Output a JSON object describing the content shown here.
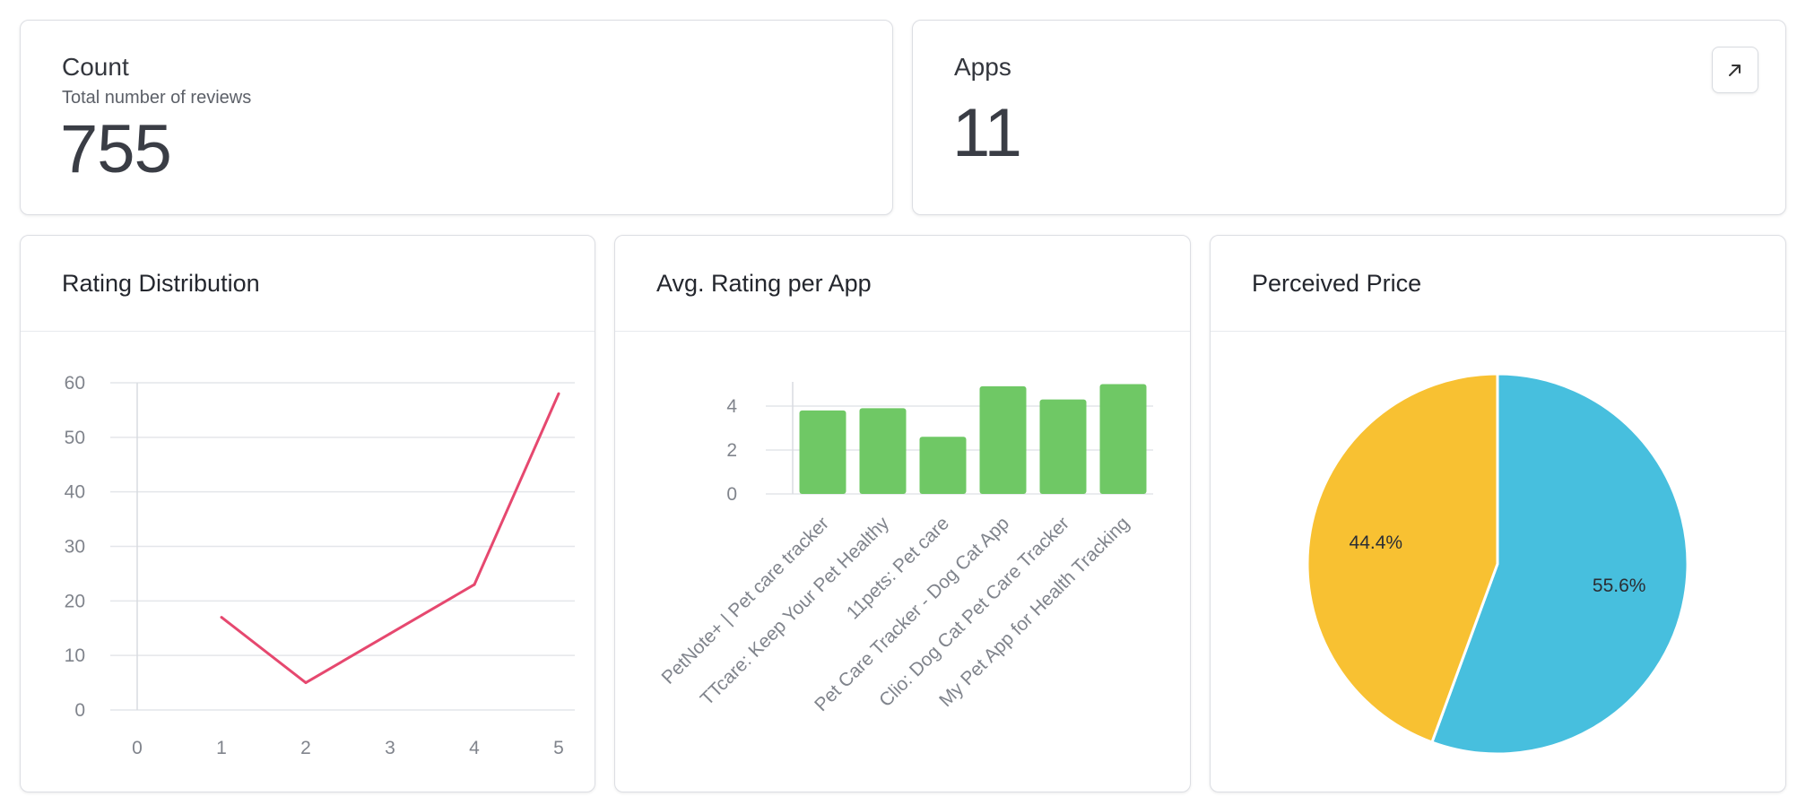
{
  "count_card": {
    "title": "Count",
    "subtitle": "Total number of reviews",
    "value": "755"
  },
  "apps_card": {
    "title": "Apps",
    "value": "11",
    "expand_icon": "arrow-up-right-icon"
  },
  "colors": {
    "line": "#e6486f",
    "bar": "#6fc865",
    "pie_yellow": "#f8c132",
    "pie_blue": "#47bfde"
  },
  "chart_data": [
    {
      "type": "line",
      "title": "Rating Distribution",
      "x": [
        1,
        2,
        3,
        4,
        5
      ],
      "values": [
        17,
        5,
        14,
        23,
        58
      ],
      "x_ticks": [
        "0",
        "1",
        "2",
        "3",
        "4",
        "5"
      ],
      "y_ticks": [
        "0",
        "10",
        "20",
        "30",
        "40",
        "50",
        "60"
      ],
      "xlim": [
        0,
        5
      ],
      "ylim": [
        0,
        60
      ],
      "grid": true
    },
    {
      "type": "bar",
      "title": "Avg. Rating per App",
      "categories": [
        "PetNote+ | Pet care tracker",
        "TTcare: Keep Your Pet Healthy",
        "11pets: Pet care",
        "Pet Care Tracker - Dog Cat App",
        "Clio: Dog Cat Pet Care Tracker",
        "My Pet App for Health Tracking"
      ],
      "values": [
        3.8,
        3.9,
        2.6,
        4.9,
        4.3,
        5.0
      ],
      "y_ticks": [
        "0",
        "2",
        "4"
      ],
      "ylim": [
        0,
        5.1
      ],
      "grid": true
    },
    {
      "type": "pie",
      "title": "Perceived Price",
      "slices": [
        {
          "label": "55.6%",
          "value": 55.6,
          "color": "#47bfde"
        },
        {
          "label": "44.4%",
          "value": 44.4,
          "color": "#f8c132"
        }
      ]
    }
  ]
}
